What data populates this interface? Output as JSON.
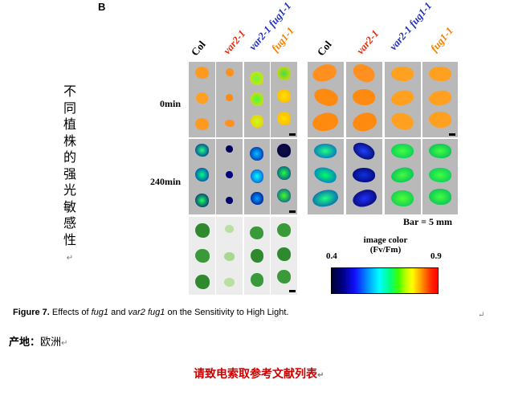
{
  "figure": {
    "panel_letter": "B",
    "side_title": "不同植株的强光敏感性",
    "para_mark": "↵",
    "left_columns": [
      {
        "label": "Col",
        "color": "#000000"
      },
      {
        "label": "var2-1",
        "color": "#e03010"
      },
      {
        "label": "var2-1 fug1-1",
        "color": "#2030c0"
      },
      {
        "label": "fug1-1",
        "color": "#f08000"
      }
    ],
    "right_columns": [
      {
        "label": "Col",
        "color": "#000000"
      },
      {
        "label": "var2-1",
        "color": "#e03010"
      },
      {
        "label": "var2-1 fug1-1",
        "color": "#2030c0"
      },
      {
        "label": "fug1-1",
        "color": "#f08000"
      }
    ],
    "row_labels": [
      "0min",
      "240min"
    ],
    "scale_bar": "Bar = 5 mm",
    "colorbar": {
      "title_line1": "image color",
      "title_line2": "(Fv/Fm)",
      "min": "0.4",
      "max": "0.9"
    }
  },
  "caption": {
    "label": "Figure 7.",
    "text_a": " Effects of ",
    "gene1": "fug1",
    "text_b": " and ",
    "gene2": "var2 fug1",
    "text_c": " on the Sensitivity to High Light.",
    "mark": "↵"
  },
  "origin": {
    "label": "产地：",
    "value": "欧洲",
    "mark": "↵"
  },
  "request_link": {
    "text": "请致电索取参考文献列表",
    "mark": "↵"
  }
}
